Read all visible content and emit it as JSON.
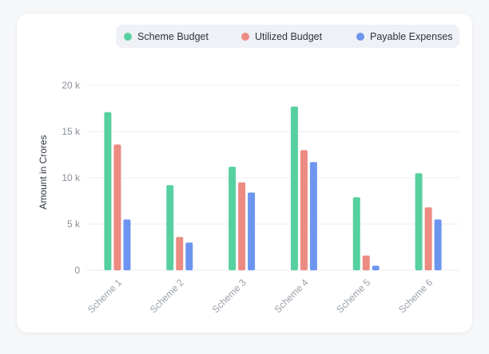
{
  "colors": {
    "scheme_budget": "#57d0a0",
    "utilized_budget": "#ec8b82",
    "payable_expenses": "#6d95f0"
  },
  "legend": [
    {
      "label": "Scheme Budget",
      "color": "#57d0a0"
    },
    {
      "label": "Utilized Budget",
      "color": "#ec8b82"
    },
    {
      "label": "Payable Expenses",
      "color": "#6d95f0"
    }
  ],
  "chart_data": {
    "type": "bar",
    "categories": [
      "Scheme 1",
      "Scheme 2",
      "Scheme 3",
      "Scheme 4",
      "Scheme 5",
      "Scheme 6"
    ],
    "series": [
      {
        "name": "Scheme Budget",
        "values": [
          17100,
          9200,
          11200,
          17700,
          7900,
          10500
        ]
      },
      {
        "name": "Utilized Budget",
        "values": [
          13600,
          3600,
          9500,
          13000,
          1600,
          6800
        ]
      },
      {
        "name": "Payable Expenses",
        "values": [
          5500,
          3000,
          8400,
          11700,
          500,
          5500
        ]
      }
    ],
    "ylabel": "Amount in Crores",
    "ylim": [
      0,
      20000
    ],
    "yticks": [
      "0",
      "5 k",
      "10 k",
      "15 k",
      "20 k"
    ],
    "ytick_values": [
      0,
      5000,
      10000,
      15000,
      20000
    ],
    "grid": true,
    "legend_position": "top-right"
  }
}
